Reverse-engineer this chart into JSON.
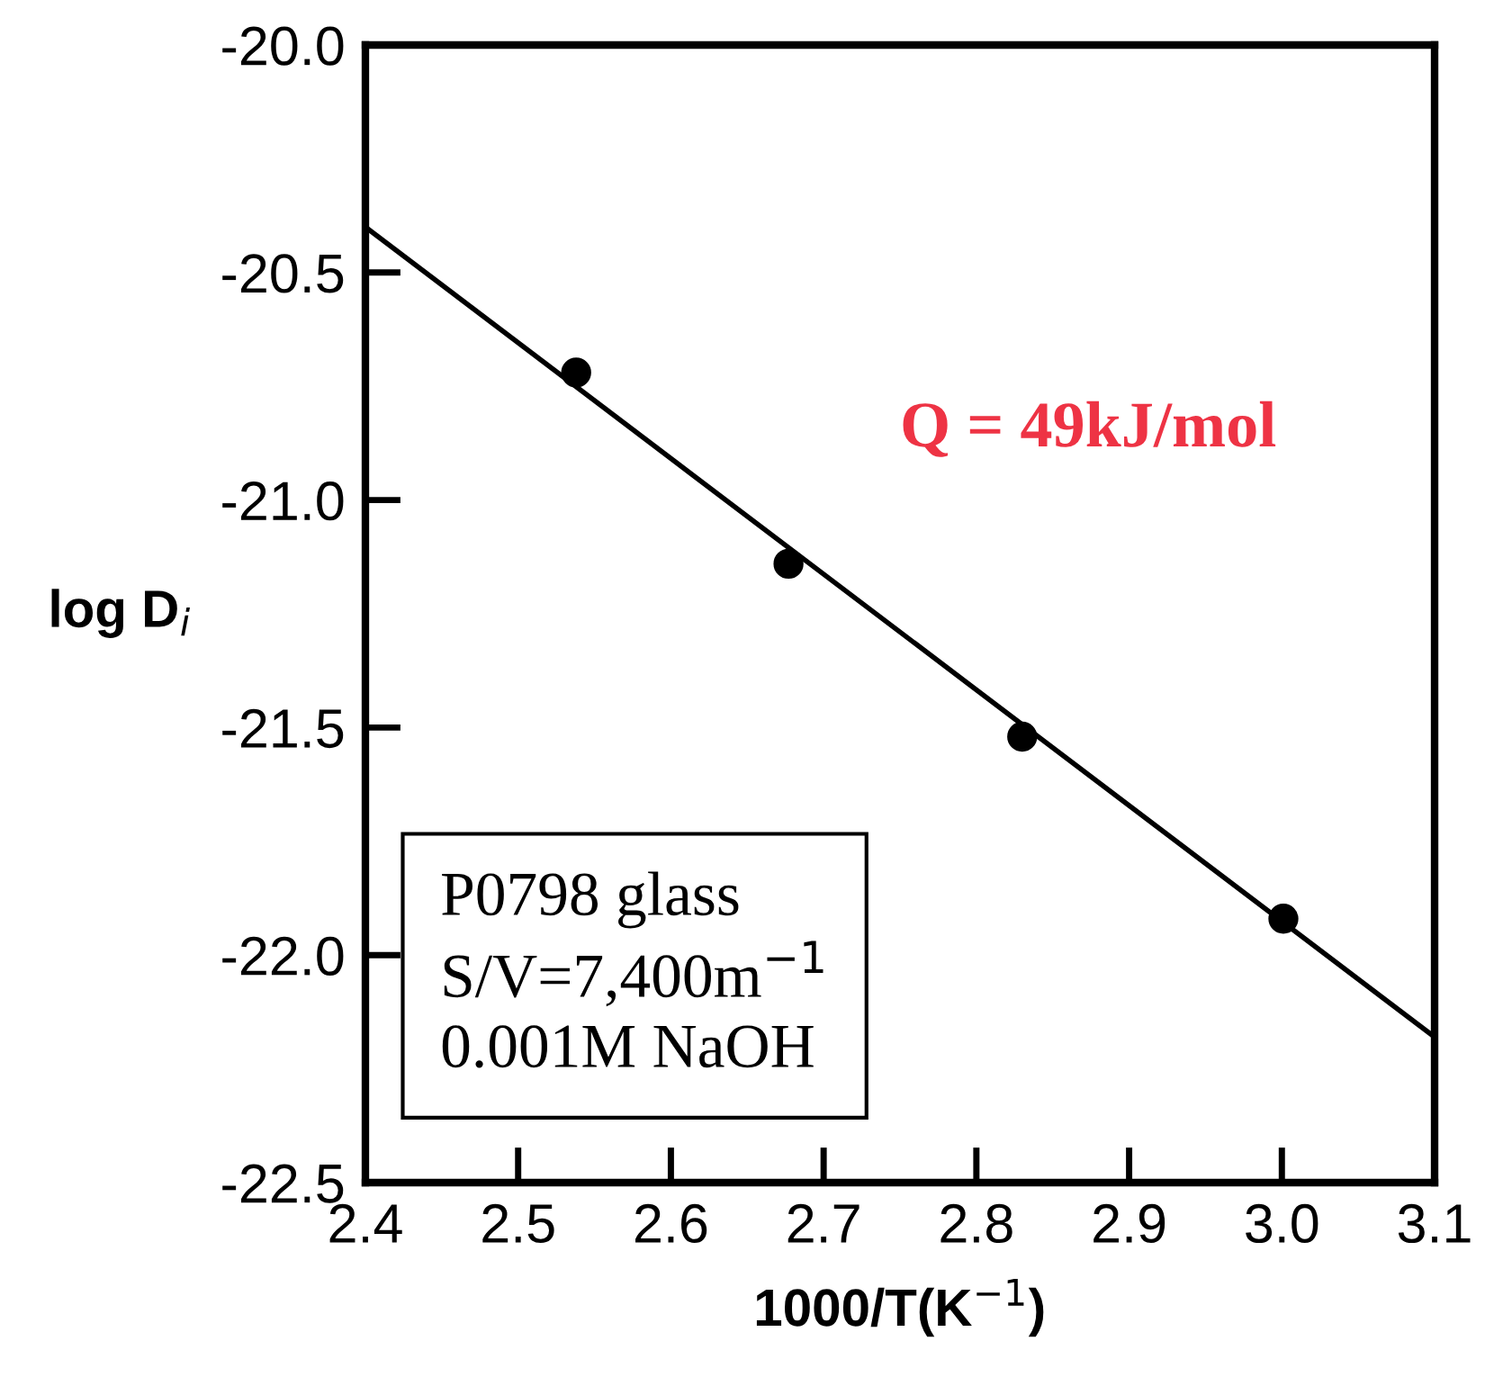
{
  "chart_data": {
    "type": "scatter",
    "xlabel": "1000/T(K$^{−1}$)",
    "ylabel": "log D$_{i}$",
    "xlim": [
      2.4,
      3.1
    ],
    "xticks": [
      {
        "value": 2.4,
        "label": "2.4"
      },
      {
        "value": 2.5,
        "label": "2.5"
      },
      {
        "value": 2.6,
        "label": "2.6"
      },
      {
        "value": 2.7,
        "label": "2.7"
      },
      {
        "value": 2.8,
        "label": "2.8"
      },
      {
        "value": 2.9,
        "label": "2.9"
      },
      {
        "value": 3.0,
        "label": "3.0"
      },
      {
        "value": 3.1,
        "label": "3.1"
      }
    ],
    "ylim": [
      -22.5,
      -20.0
    ],
    "yticks": [
      {
        "value": -22.5,
        "label": "-22.5"
      },
      {
        "value": -22.0,
        "label": "-22.0"
      },
      {
        "value": -21.5,
        "label": "-21.5"
      },
      {
        "value": -21.0,
        "label": "-21.0"
      },
      {
        "value": -20.5,
        "label": "-20.5"
      },
      {
        "value": -20.0,
        "label": "-20.0"
      }
    ],
    "grid": false,
    "legend": false,
    "marker": "circle",
    "series": [
      {
        "color": "#000000",
        "x": [
          2.538,
          2.677,
          2.83,
          3.001
        ],
        "values": [
          -20.72,
          -21.14,
          -21.52,
          -21.92
        ]
      },
      {
        "type": "line",
        "color": "#000000",
        "x": [
          2.4,
          3.1
        ],
        "values": [
          -20.4,
          -22.18
        ],
        "marker": "none",
        "line_style": "solid"
      }
    ],
    "annotations": [
      "Q = 49kJ/mol",
      "P0798 glass\nS/V=7,400m$^{−1}$\n0.001M NaOH"
    ]
  }
}
